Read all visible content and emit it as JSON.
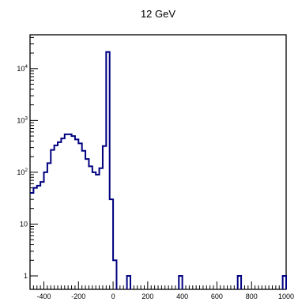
{
  "chart_data": {
    "type": "histogram",
    "title": "12 GeV",
    "xlabel": "",
    "ylabel": "",
    "xlim": [
      -480,
      1000
    ],
    "ylim": [
      0.55,
      45000
    ],
    "yscale": "log",
    "grid": false,
    "legend": "none",
    "line_color": "#000080",
    "xticks": [
      "-400",
      "-200",
      "0",
      "200",
      "400",
      "600",
      "800",
      "1000"
    ],
    "yticks": [
      {
        "base": "1",
        "exp": ""
      },
      {
        "base": "10",
        "exp": ""
      },
      {
        "base": "10",
        "exp": "2"
      },
      {
        "base": "10",
        "exp": "3"
      },
      {
        "base": "10",
        "exp": "4"
      }
    ],
    "bin_width": 20,
    "bins": [
      [
        -480,
        40
      ],
      [
        -460,
        50
      ],
      [
        -440,
        55
      ],
      [
        -420,
        65
      ],
      [
        -400,
        100
      ],
      [
        -380,
        150
      ],
      [
        -360,
        270
      ],
      [
        -340,
        330
      ],
      [
        -320,
        380
      ],
      [
        -300,
        450
      ],
      [
        -280,
        540
      ],
      [
        -260,
        540
      ],
      [
        -240,
        500
      ],
      [
        -220,
        430
      ],
      [
        -200,
        360
      ],
      [
        -180,
        260
      ],
      [
        -160,
        180
      ],
      [
        -140,
        130
      ],
      [
        -120,
        100
      ],
      [
        -100,
        90
      ],
      [
        -80,
        120
      ],
      [
        -60,
        320
      ],
      [
        -40,
        21000
      ],
      [
        -20,
        30
      ],
      [
        0,
        2
      ],
      [
        80,
        1
      ],
      [
        380,
        1
      ],
      [
        720,
        1
      ],
      [
        980,
        1
      ]
    ]
  }
}
